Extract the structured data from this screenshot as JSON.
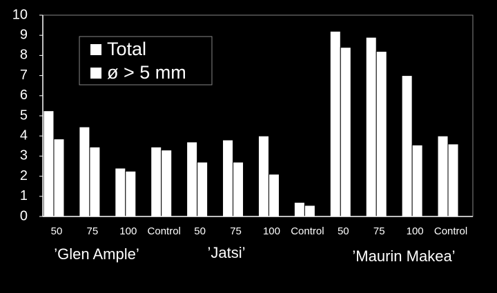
{
  "chart_data": {
    "type": "bar",
    "categories": [
      "50",
      "75",
      "100",
      "Control",
      "50",
      "75",
      "100",
      "Control",
      "50",
      "75",
      "100",
      "Control"
    ],
    "groups": [
      "’Glen Ample’",
      "’Jatsi’",
      "’Maurin Makea’"
    ],
    "series": [
      {
        "name": "Total",
        "color": "#ffffff",
        "values": [
          5.25,
          4.45,
          2.4,
          3.45,
          3.7,
          3.8,
          4.0,
          0.7,
          9.2,
          8.9,
          7.0,
          4.0
        ]
      },
      {
        "name": "ø > 5 mm",
        "color": "#ffffff",
        "values": [
          3.85,
          3.45,
          2.25,
          3.3,
          2.7,
          2.7,
          2.1,
          0.55,
          8.4,
          8.2,
          3.55,
          3.6
        ]
      }
    ],
    "ylim": [
      0,
      10
    ],
    "yticks": [
      0,
      1,
      2,
      3,
      4,
      5,
      6,
      7,
      8,
      9,
      10
    ]
  }
}
